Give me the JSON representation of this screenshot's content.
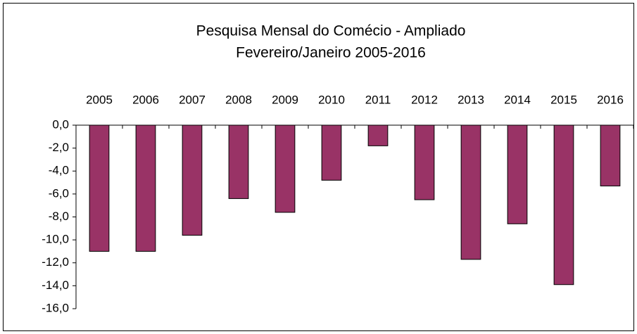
{
  "chart_data": {
    "type": "bar",
    "title": "Pesquisa Mensal do Comécio - Ampliado",
    "subtitle": "Fevereiro/Janeiro 2005-2016",
    "categories": [
      "2005",
      "2006",
      "2007",
      "2008",
      "2009",
      "2010",
      "2011",
      "2012",
      "2013",
      "2014",
      "2015",
      "2016"
    ],
    "values": [
      -11.0,
      -11.0,
      -9.6,
      -6.4,
      -7.6,
      -4.8,
      -1.8,
      -6.5,
      -11.7,
      -8.6,
      -13.9,
      -5.3
    ],
    "color": "#993366",
    "ylim": [
      -16,
      0
    ],
    "yticks": [
      {
        "value": 0,
        "label": "0,0"
      },
      {
        "value": -2,
        "label": "-2,0"
      },
      {
        "value": -4,
        "label": "-4,0"
      },
      {
        "value": -6,
        "label": "-6,0"
      },
      {
        "value": -8,
        "label": "-8,0"
      },
      {
        "value": -10,
        "label": "-10,0"
      },
      {
        "value": -12,
        "label": "-12,0"
      },
      {
        "value": -14,
        "label": "-14,0"
      },
      {
        "value": -16,
        "label": "-16,0"
      }
    ],
    "grid": false
  }
}
